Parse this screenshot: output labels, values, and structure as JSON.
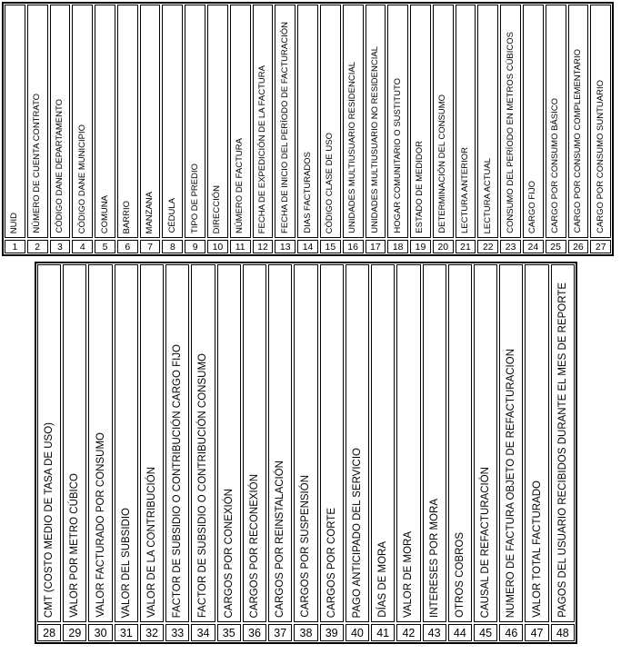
{
  "colors": {
    "background": "#ffffff",
    "border": "#000000",
    "text": "#000000"
  },
  "tables": [
    {
      "columns": [
        {
          "num": "1",
          "label": "NUID"
        },
        {
          "num": "2",
          "label": "NÚMERO DE CUENTA CONTRATO"
        },
        {
          "num": "3",
          "label": "CÓDIGO DANE DEPARTAMENTO"
        },
        {
          "num": "4",
          "label": "CÓDIGO DANE MUNICIPIO"
        },
        {
          "num": "5",
          "label": "COMUNA"
        },
        {
          "num": "6",
          "label": "BARRIO"
        },
        {
          "num": "7",
          "label": "MANZANA"
        },
        {
          "num": "8",
          "label": "CÉDULA"
        },
        {
          "num": "9",
          "label": "TIPO DE PREDIO"
        },
        {
          "num": "10",
          "label": "DIRECCIÓN"
        },
        {
          "num": "11",
          "label": "NÚMERO DE FACTURA"
        },
        {
          "num": "12",
          "label": "FECHA DE EXPEDICIÓN DE LA FACTURA"
        },
        {
          "num": "13",
          "label": "FECHA DE INICIO DEL PERÍODO DE FACTURACIÓN"
        },
        {
          "num": "14",
          "label": "DIAS FACTURADOS"
        },
        {
          "num": "15",
          "label": "CÓDIGO CLASE DE USO"
        },
        {
          "num": "16",
          "label": "UNIDADES MULTIUSUARIO RESIDENCIAL"
        },
        {
          "num": "17",
          "label": "UNIDADES MULTIUSUARIO NO RESIDENCIAL"
        },
        {
          "num": "18",
          "label": "HOGAR COMUNITARIO O SUSTITUTO"
        },
        {
          "num": "19",
          "label": "ESTADO DE MEDIDOR"
        },
        {
          "num": "20",
          "label": "DETERMINACIÓN DEL CONSUMO"
        },
        {
          "num": "21",
          "label": "LECTURA ANTERIOR"
        },
        {
          "num": "22",
          "label": "LECTURA ACTUAL"
        },
        {
          "num": "23",
          "label": "CONSUMO DEL PERÍODO EN METROS CÚBICOS"
        },
        {
          "num": "24",
          "label": "CARGO FIJO"
        },
        {
          "num": "25",
          "label": "CARGO POR CONSUMO BÁSICO"
        },
        {
          "num": "26",
          "label": "CARGO POR CONSUMO COMPLEMENTARIO"
        },
        {
          "num": "27",
          "label": "CARGO POR CONSUMO SUNTUARIO"
        }
      ]
    },
    {
      "columns": [
        {
          "num": "28",
          "label": "CMT (COSTO MEDIO DE TASA DE USO)"
        },
        {
          "num": "29",
          "label": "VALOR POR METRO CÚBICO"
        },
        {
          "num": "30",
          "label": "VALOR FACTURADO POR CONSUMO"
        },
        {
          "num": "31",
          "label": "VALOR DEL SUBSIDIO"
        },
        {
          "num": "32",
          "label": "VALOR DE LA CONTRIBUCIÓN"
        },
        {
          "num": "33",
          "label": "FACTOR DE SUBSIDIO O CONTRIBUCIÓN CARGO FIJO"
        },
        {
          "num": "34",
          "label": "FACTOR DE SUBSIDIO O CONTRIBUCIÓN CONSUMO"
        },
        {
          "num": "35",
          "label": "CARGOS POR CONEXIÓN"
        },
        {
          "num": "36",
          "label": "CARGOS POR RECONEXIÓN"
        },
        {
          "num": "37",
          "label": "CARGOS POR REINSTALACIÓN"
        },
        {
          "num": "38",
          "label": "CARGOS POR SUSPENSIÓN"
        },
        {
          "num": "39",
          "label": "CARGOS POR CORTE"
        },
        {
          "num": "40",
          "label": "PAGO ANTICIPADO DEL SERVICIO"
        },
        {
          "num": "41",
          "label": "DÍAS DE MORA"
        },
        {
          "num": "42",
          "label": "VALOR DE MORA"
        },
        {
          "num": "43",
          "label": "INTERESES POR MORA"
        },
        {
          "num": "44",
          "label": "OTROS COBROS"
        },
        {
          "num": "45",
          "label": "CAUSAL DE REFACTURACIÓN"
        },
        {
          "num": "46",
          "label": "NUMERO DE FACTURA OBJETO DE REFACTURACION"
        },
        {
          "num": "47",
          "label": "VALOR TOTAL FACTURADO"
        },
        {
          "num": "48",
          "label": "PAGOS DEL USUARIO RECIBIDOS DURANTE EL MES DE REPORTE"
        }
      ]
    }
  ]
}
